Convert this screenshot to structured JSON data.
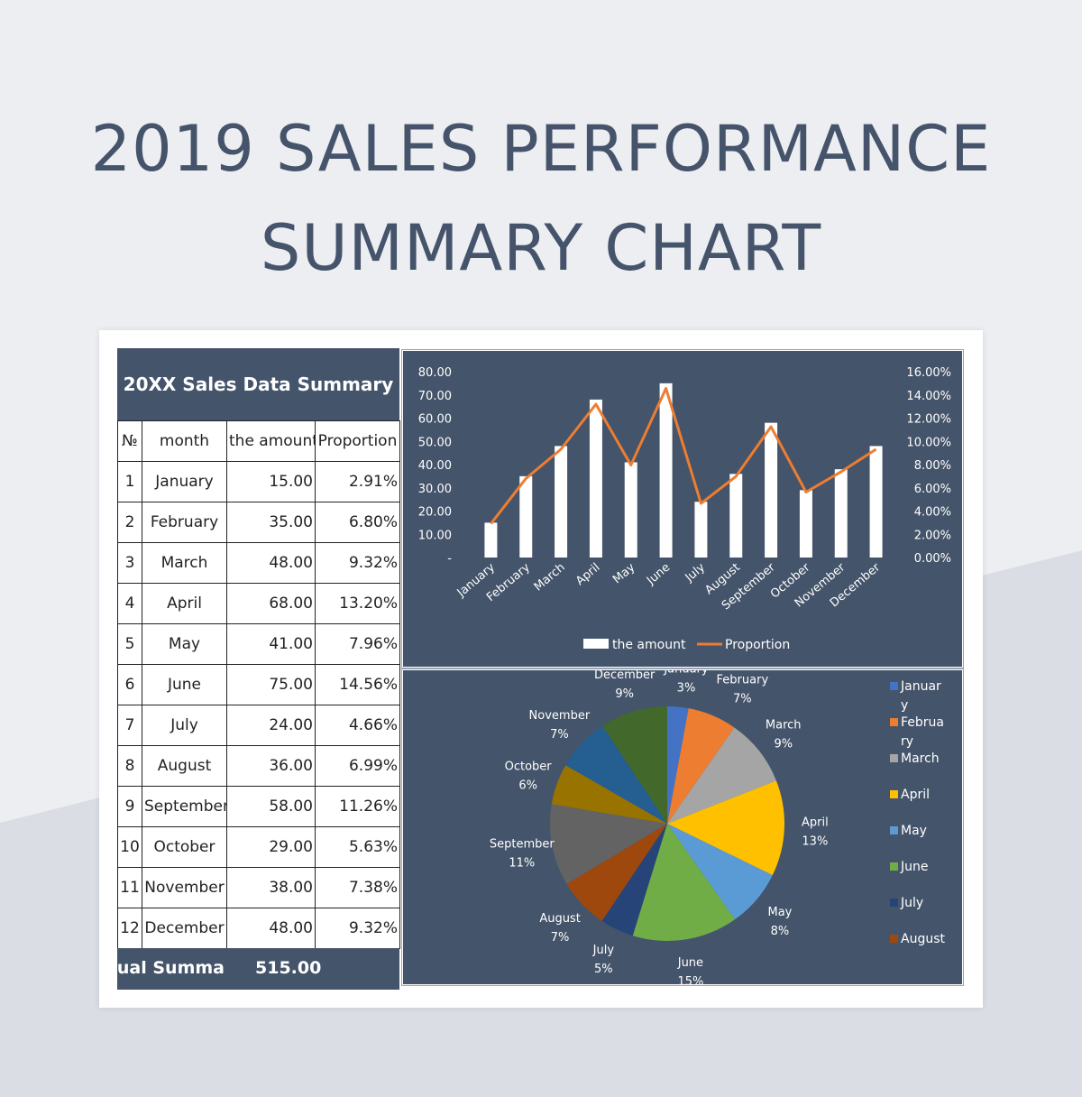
{
  "page": {
    "title_line1": "2019 SALES PERFORMANCE",
    "title_line2": "SUMMARY CHART"
  },
  "colors": {
    "background": "#eceef1",
    "panel": "#44546a",
    "title_text": "#45536b",
    "line": "#ed7d31",
    "bar": "#ffffff"
  },
  "table": {
    "header": "20XX Sales Data Summary",
    "columns": [
      "№",
      "month",
      "the amount",
      "Proportion"
    ],
    "rows": [
      {
        "no": "1",
        "month": "January",
        "amount": "15.00",
        "proportion": "2.91%"
      },
      {
        "no": "2",
        "month": "February",
        "amount": "35.00",
        "proportion": "6.80%"
      },
      {
        "no": "3",
        "month": "March",
        "amount": "48.00",
        "proportion": "9.32%"
      },
      {
        "no": "4",
        "month": "April",
        "amount": "68.00",
        "proportion": "13.20%"
      },
      {
        "no": "5",
        "month": "May",
        "amount": "41.00",
        "proportion": "7.96%"
      },
      {
        "no": "6",
        "month": "June",
        "amount": "75.00",
        "proportion": "14.56%"
      },
      {
        "no": "7",
        "month": "July",
        "amount": "24.00",
        "proportion": "4.66%"
      },
      {
        "no": "8",
        "month": "August",
        "amount": "36.00",
        "proportion": "6.99%"
      },
      {
        "no": "9",
        "month": "September",
        "amount": "58.00",
        "proportion": "11.26%"
      },
      {
        "no": "10",
        "month": "October",
        "amount": "29.00",
        "proportion": "5.63%"
      },
      {
        "no": "11",
        "month": "November",
        "amount": "38.00",
        "proportion": "7.38%"
      },
      {
        "no": "12",
        "month": "December",
        "amount": "48.00",
        "proportion": "9.32%"
      }
    ],
    "footer_label": "nnual Summa",
    "footer_total": "515.00"
  },
  "chart_data": [
    {
      "type": "bar",
      "combo": "bar + line on secondary axis",
      "categories": [
        "January",
        "February",
        "March",
        "April",
        "May",
        "June",
        "July",
        "August",
        "September",
        "October",
        "November",
        "December"
      ],
      "series": [
        {
          "name": "the amount",
          "type": "bar",
          "axis": "left",
          "values": [
            15,
            35,
            48,
            68,
            41,
            75,
            24,
            36,
            58,
            29,
            38,
            48
          ]
        },
        {
          "name": "Proportion",
          "type": "line",
          "axis": "right",
          "values": [
            2.91,
            6.8,
            9.32,
            13.2,
            7.96,
            14.56,
            4.66,
            6.99,
            11.26,
            5.63,
            7.38,
            9.32
          ]
        }
      ],
      "y_left": {
        "min": 0,
        "max": 80,
        "step": 10,
        "ticks": [
          "-",
          "10.00",
          "20.00",
          "30.00",
          "40.00",
          "50.00",
          "60.00",
          "70.00",
          "80.00"
        ]
      },
      "y_right": {
        "min": 0,
        "max": 16,
        "step": 2,
        "ticks": [
          "0.00%",
          "2.00%",
          "4.00%",
          "6.00%",
          "8.00%",
          "10.00%",
          "12.00%",
          "14.00%",
          "16.00%"
        ]
      },
      "grid": false,
      "legend": "bottom"
    },
    {
      "type": "pie",
      "labels": [
        "January",
        "February",
        "March",
        "April",
        "May",
        "June",
        "July",
        "August",
        "September",
        "October",
        "November",
        "December"
      ],
      "values": [
        15,
        35,
        48,
        68,
        41,
        75,
        24,
        36,
        58,
        29,
        38,
        48
      ],
      "percent_labels": [
        "3%",
        "7%",
        "9%",
        "13%",
        "8%",
        "15%",
        "5%",
        "7%",
        "11%",
        "6%",
        "7%",
        "9%"
      ],
      "colors": [
        "#4472c4",
        "#ed7d31",
        "#a5a5a5",
        "#ffc000",
        "#5b9bd5",
        "#70ad47",
        "#264478",
        "#9e480e",
        "#636363",
        "#997300",
        "#255e91",
        "#43682b"
      ],
      "legend": "right",
      "legend_entries": [
        {
          "lines": [
            "Januar",
            "y"
          ]
        },
        {
          "lines": [
            "Februa",
            "ry"
          ]
        },
        {
          "lines": [
            "March"
          ]
        },
        {
          "lines": [
            "April"
          ]
        },
        {
          "lines": [
            "May"
          ]
        },
        {
          "lines": [
            "June"
          ]
        },
        {
          "lines": [
            "July"
          ]
        },
        {
          "lines": [
            "August"
          ]
        }
      ]
    }
  ]
}
